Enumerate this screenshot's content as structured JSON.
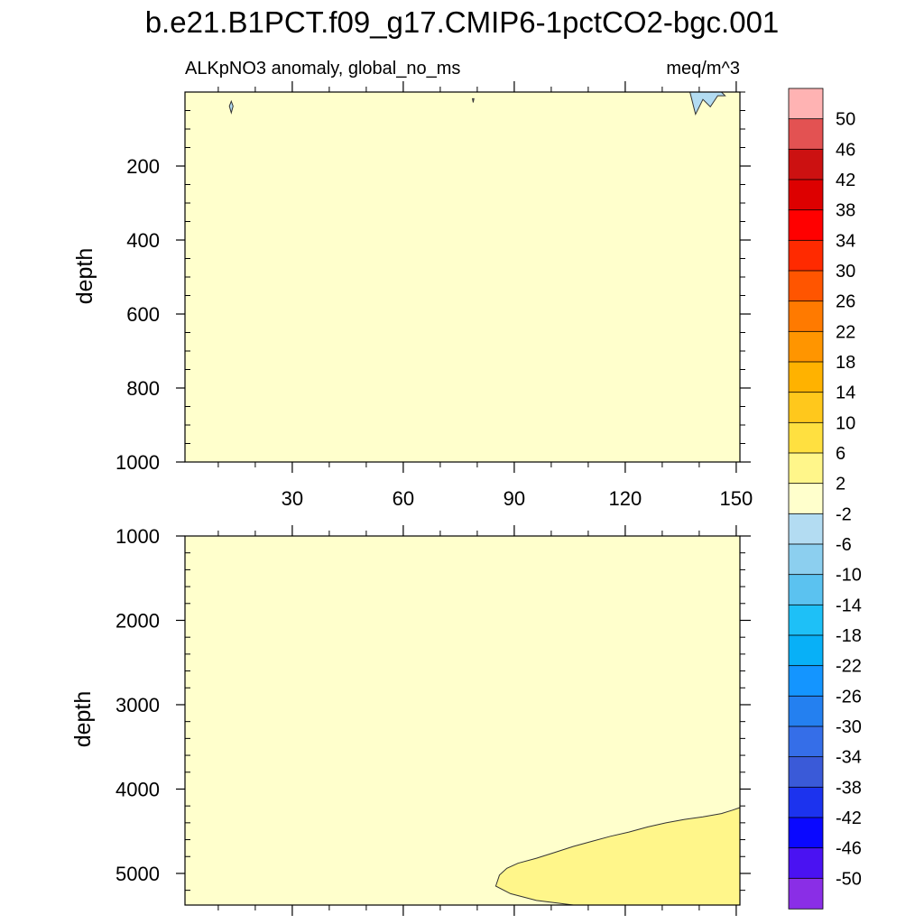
{
  "chart_data": {
    "type": "heatmap",
    "title": "b.e21.B1PCT.f09_g17.CMIP6-1pctCO2-bgc.001",
    "variable_label": "ALKpNO3 anomaly, global_no_ms",
    "units_label": "meq/m^3",
    "colorbar": {
      "levels": [
        50,
        46,
        42,
        38,
        34,
        30,
        26,
        22,
        18,
        14,
        10,
        6,
        2,
        -2,
        -6,
        -10,
        -14,
        -18,
        -22,
        -26,
        -30,
        -34,
        -38,
        -42,
        -46,
        -50
      ],
      "level_labels": [
        "50",
        "46",
        "42",
        "38",
        "34",
        "30",
        "26",
        "22",
        "18",
        "14",
        "10",
        "6",
        "2",
        "-2",
        "-6",
        "-10",
        "-14",
        "-18",
        "-22",
        "-26",
        "-30",
        "-34",
        "-38",
        "-42",
        "-46",
        "-50"
      ],
      "colors_top_to_bottom": [
        "#ffb3b3",
        "#e35252",
        "#cc1111",
        "#dd0000",
        "#ff0000",
        "#ff2a00",
        "#ff5500",
        "#ff7a00",
        "#ff9500",
        "#ffb200",
        "#ffc81c",
        "#ffe040",
        "#fff68a",
        "#ffffcc",
        "#b3dcf2",
        "#8ccfef",
        "#5bc2f0",
        "#1ec0f7",
        "#08b0f7",
        "#1495ff",
        "#2480f0",
        "#356ee8",
        "#3a5ad8",
        "#1c33ee",
        "#0a08ff",
        "#4a12f2",
        "#8a2ee6"
      ]
    },
    "x_axis": {
      "range": [
        1,
        151
      ],
      "ticks": [
        30,
        60,
        90,
        120,
        150
      ],
      "tick_labels": [
        "30",
        "60",
        "90",
        "120",
        "150"
      ]
    },
    "panels": [
      {
        "name": "upper",
        "ylabel": "depth",
        "y_range": [
          0,
          1000
        ],
        "y_ticks": [
          200,
          400,
          600,
          800,
          1000
        ],
        "y_tick_labels": [
          "200",
          "400",
          "600",
          "800",
          "1000"
        ],
        "background_interval": [
          -2,
          2
        ],
        "regions": [
          {
            "interval": [
              -6,
              -2
            ],
            "outline": [
              [
                137.5,
                0
              ],
              [
                139,
                60
              ],
              [
                141,
                20
              ],
              [
                143,
                40
              ],
              [
                145,
                10
              ],
              [
                147,
                10
              ],
              [
                146,
                0
              ]
            ]
          },
          {
            "interval": [
              -6,
              -2
            ],
            "outline": [
              [
                13,
                38
              ],
              [
                13.5,
                25
              ],
              [
                14,
                38
              ],
              [
                13.5,
                56
              ]
            ]
          },
          {
            "interval": [
              -6,
              -2
            ],
            "outline": [
              [
                78.7,
                18
              ],
              [
                78.9,
                28
              ],
              [
                79.1,
                18
              ]
            ]
          }
        ]
      },
      {
        "name": "lower",
        "ylabel": "depth",
        "y_range": [
          1000,
          5375
        ],
        "y_ticks": [
          1000,
          2000,
          3000,
          4000,
          5000
        ],
        "y_tick_labels": [
          "1000",
          "2000",
          "3000",
          "4000",
          "5000"
        ],
        "background_interval": [
          -2,
          2
        ],
        "regions": [
          {
            "interval": [
              2,
              6
            ],
            "outline": [
              [
                85,
                5150
              ],
              [
                86,
                5020
              ],
              [
                88,
                4940
              ],
              [
                91,
                4880
              ],
              [
                96,
                4820
              ],
              [
                101,
                4750
              ],
              [
                106,
                4680
              ],
              [
                111,
                4620
              ],
              [
                116,
                4560
              ],
              [
                121,
                4510
              ],
              [
                126,
                4450
              ],
              [
                131,
                4400
              ],
              [
                136,
                4360
              ],
              [
                141,
                4330
              ],
              [
                146,
                4290
              ],
              [
                149,
                4250
              ],
              [
                151,
                4220
              ],
              [
                151,
                5375
              ],
              [
                106,
                5375
              ],
              [
                96,
                5320
              ],
              [
                89,
                5240
              ]
            ]
          }
        ]
      }
    ]
  }
}
